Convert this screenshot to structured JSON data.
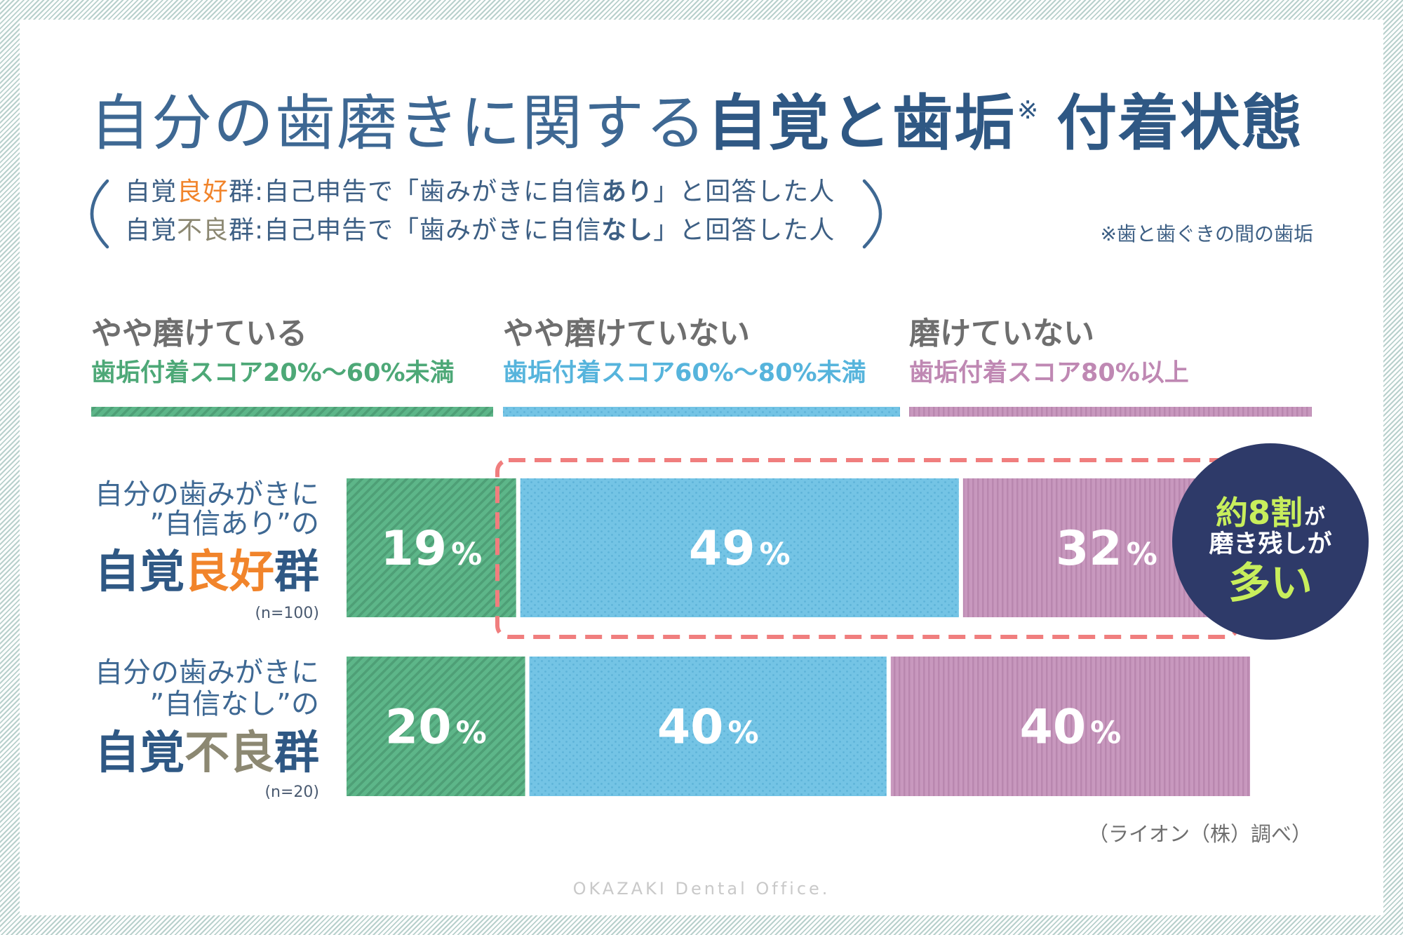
{
  "header": {
    "title": {
      "part1": "自分の歯磨きに関する",
      "part2": "自覚と歯垢",
      "mark": "※",
      "part3": "付着状態"
    },
    "definitions": [
      [
        "自覚",
        "良好",
        "群:自己申告で「歯みがきに自信",
        "あり",
        "」と回答した人"
      ],
      [
        "自覚",
        "不良",
        "群:自己申告で「歯みがきに自信",
        "なし",
        "」と回答した人"
      ]
    ],
    "footnote": "※歯と歯ぐきの間の歯垢"
  },
  "chart_data": {
    "type": "bar",
    "orientation": "horizontal",
    "stacked": true,
    "unit": "%",
    "xlim": [
      0,
      100
    ],
    "legend": "top",
    "categories": [
      "自覚良好群",
      "自覚不良群"
    ],
    "category_details": [
      {
        "intro_line1": "自分の歯みがきに",
        "intro_line2": "”自信あり”の",
        "accent": "良好",
        "accent_color": "#F1842B",
        "sample_size": "(n=100)"
      },
      {
        "intro_line1": "自分の歯みがきに",
        "intro_line2": "”自信なし”の",
        "accent": "不良",
        "accent_color": "#8C8872",
        "sample_size": "(n=20)"
      }
    ],
    "series": [
      {
        "name": "やや磨けている",
        "score_range": "歯垢付着スコア20%～60%未満",
        "values": [
          19,
          20
        ],
        "color": "#5DB689",
        "label_color": "#4DA877"
      },
      {
        "name": "やや磨けていない",
        "score_range": "歯垢付着スコア60%～80%未満",
        "values": [
          49,
          40
        ],
        "color": "#74C4E5",
        "label_color": "#56B4DC"
      },
      {
        "name": "磨けていない",
        "score_range": "歯垢付着スコア80%以上",
        "values": [
          32,
          40
        ],
        "color": "#C898BE",
        "label_color": "#BF88B3"
      }
    ]
  },
  "callout": {
    "emphasis": "約8割",
    "emphasis_suffix": "が",
    "line2": "磨き残しが",
    "line3": "多い"
  },
  "source": "（ライオン（株）調べ）",
  "watermark": "OKAZAKI Dental Office.",
  "colors": {
    "title": "#3E6893",
    "legend_heading": "#6E6E6E",
    "highlight_frame": "#F07E7E",
    "callout_fill": "#2E3A69",
    "callout_emphasis": "#C8EE5C",
    "border_stripes": "#B8D0CC"
  }
}
